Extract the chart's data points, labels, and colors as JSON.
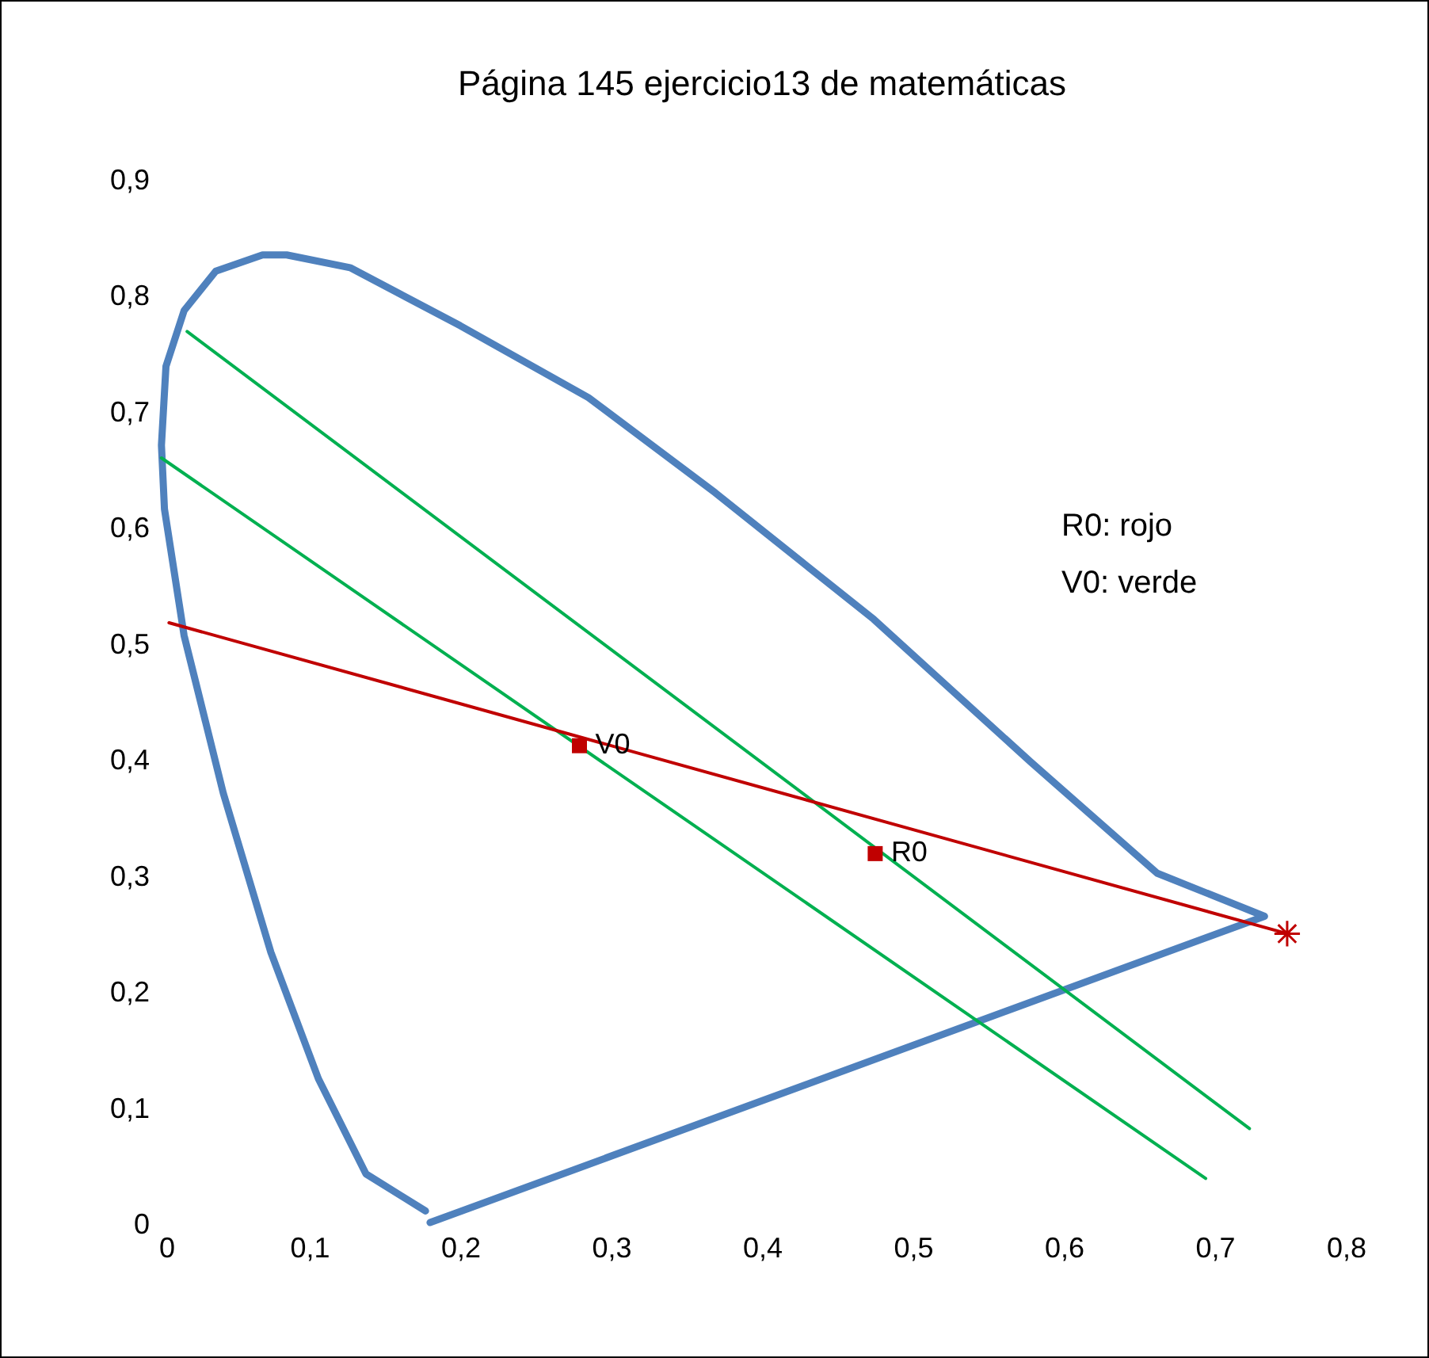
{
  "chart_data": {
    "type": "line",
    "title": "Página 145 ejercicio13 de matemáticas",
    "xlim": [
      0,
      0.8
    ],
    "ylim": [
      0,
      0.9
    ],
    "xticks": [
      0,
      {
        "value": 0.1,
        "label": "0,1"
      },
      {
        "value": 0.2,
        "label": "0,2"
      },
      {
        "value": 0.3,
        "label": "0,3"
      },
      {
        "value": 0.4,
        "label": "0,4"
      },
      {
        "value": 0.5,
        "label": "0,5"
      },
      {
        "value": 0.6,
        "label": "0,6"
      },
      {
        "value": 0.7,
        "label": "0,7"
      },
      {
        "value": 0.8,
        "label": "0,8"
      }
    ],
    "yticks": [
      0,
      {
        "value": 0.1,
        "label": "0,1"
      },
      {
        "value": 0.2,
        "label": "0,2"
      },
      {
        "value": 0.3,
        "label": "0,3"
      },
      {
        "value": 0.4,
        "label": "0,4"
      },
      {
        "value": 0.5,
        "label": "0,5"
      },
      {
        "value": 0.6,
        "label": "0,6"
      },
      {
        "value": 0.7,
        "label": "0,7"
      },
      {
        "value": 0.8,
        "label": "0,8"
      },
      {
        "value": 0.9,
        "label": "0,9"
      }
    ],
    "grid": false,
    "annotations": [
      {
        "text": "V0",
        "x": 0.279,
        "y": 0.413
      },
      {
        "text": "R0",
        "x": 0.475,
        "y": 0.32
      },
      "R0: rojo",
      "V0: verde"
    ],
    "series": [
      {
        "color": "#4f81bd",
        "marker": "none",
        "x": [
          0.177,
          0.1375,
          0.106,
          0.0745,
          0.043,
          0.017,
          0.004,
          0.002,
          0.005,
          0.017,
          0.038,
          0.069,
          0.085,
          0.127,
          0.2,
          0.285,
          0.369,
          0.474,
          0.578,
          0.662,
          0.733,
          0.18
        ],
        "values": [
          0.012,
          0.044,
          0.126,
          0.235,
          0.372,
          0.508,
          0.617,
          0.672,
          0.74,
          0.788,
          0.822,
          0.836,
          0.836,
          0.825,
          0.775,
          0.713,
          0.631,
          0.522,
          0.399,
          0.303,
          0.266,
          0.002
        ]
      },
      {
        "color": "#00b050",
        "marker": "none",
        "x": [
          0.019,
          0.723
        ],
        "values": [
          0.77,
          0.083
        ]
      },
      {
        "color": "#00b050",
        "marker": "none",
        "x": [
          0.002,
          0.694
        ],
        "values": [
          0.661,
          0.04
        ]
      },
      {
        "color": "#c00000",
        "marker": "none",
        "x": [
          0.007,
          0.748
        ],
        "values": [
          0.519,
          0.251
        ]
      },
      {
        "type": "scatter",
        "color": "#c00000",
        "marker": "square",
        "x": [
          0.279,
          0.475
        ],
        "values": [
          0.413,
          0.32
        ]
      },
      {
        "type": "scatter",
        "color": "#c00000",
        "marker": "cross",
        "x": [
          0.748
        ],
        "values": [
          0.251
        ]
      }
    ]
  }
}
